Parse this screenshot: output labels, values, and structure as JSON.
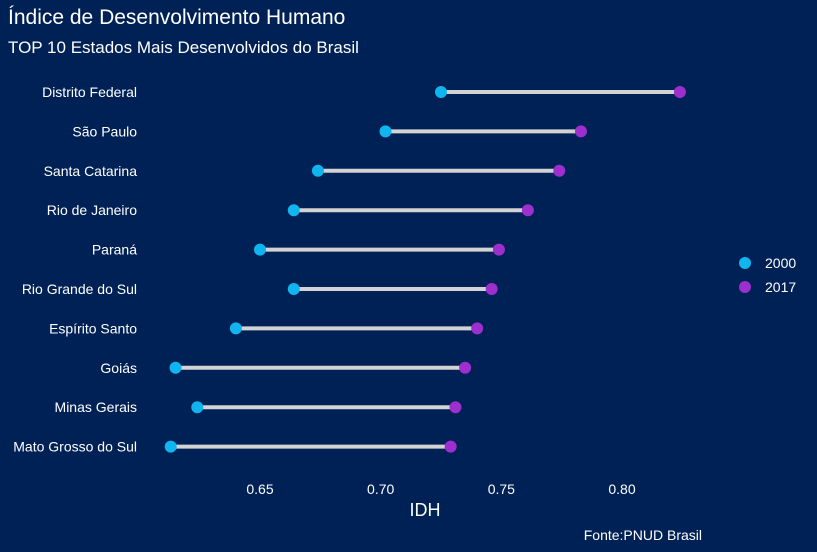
{
  "chart_data": {
    "type": "dumbbell",
    "title": "Índice de Desenvolvimento Humano",
    "subtitle": "TOP 10 Estados Mais Desenvolvidos do Brasil",
    "xlabel": "IDH",
    "ylabel": "",
    "caption": "Fonte:PNUD Brasil",
    "xlim": [
      0.61,
      0.835
    ],
    "xticks": [
      0.65,
      0.7,
      0.75,
      0.8
    ],
    "xtick_labels": [
      "0.65",
      "0.70",
      "0.75",
      "0.80"
    ],
    "grid": false,
    "legend_position": "right",
    "categories": [
      "Distrito Federal",
      "São Paulo",
      "Santa Catarina",
      "Rio de Janeiro",
      "Paraná",
      "Rio Grande do Sul",
      "Espírito Santo",
      "Goiás",
      "Minas Gerais",
      "Mato Grosso do Sul"
    ],
    "series": [
      {
        "name": "2000",
        "color": "#10B4EE",
        "values": [
          0.725,
          0.702,
          0.674,
          0.664,
          0.65,
          0.664,
          0.64,
          0.615,
          0.624,
          0.613
        ]
      },
      {
        "name": "2017",
        "color": "#9C2FCD",
        "values": [
          0.824,
          0.783,
          0.774,
          0.761,
          0.749,
          0.746,
          0.74,
          0.735,
          0.731,
          0.729
        ]
      }
    ],
    "connector_color": "#D3D3D3"
  },
  "colors": {
    "background": "#002155",
    "text": "#FFFFFF"
  }
}
